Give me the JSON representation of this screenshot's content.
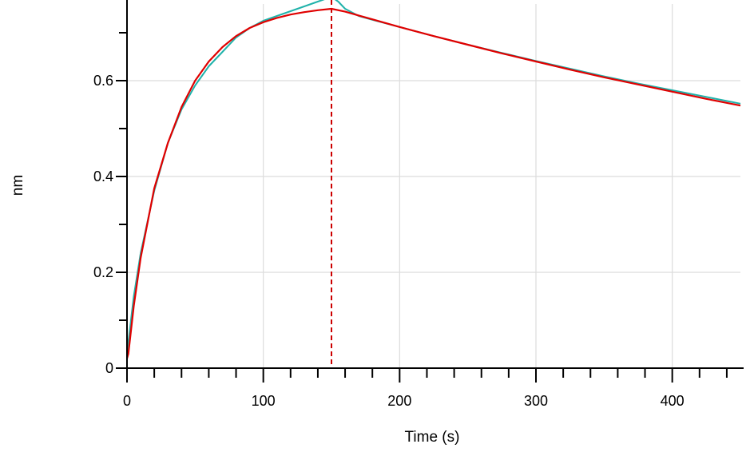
{
  "chart_data": {
    "type": "line",
    "title": "",
    "xlabel": "Time (s)",
    "ylabel": "nm",
    "xlim": [
      0,
      450
    ],
    "ylim": [
      0,
      0.76
    ],
    "x_ticks": [
      0,
      100,
      200,
      300,
      400
    ],
    "x_tick_labels": [
      "0",
      "100",
      "200",
      "300",
      "400"
    ],
    "y_ticks": [
      0,
      0.2,
      0.4,
      0.6
    ],
    "y_tick_labels": [
      "0",
      "0.2",
      "0.4",
      "0.6"
    ],
    "x_minor_step": 20,
    "y_minor_step": 0.1,
    "grid": true,
    "legend": "none",
    "vertical_markers": [
      {
        "x": 0,
        "color": "#000000",
        "dash": false
      },
      {
        "x": 0,
        "color": "#cc0000",
        "dash": true
      },
      {
        "x": 150,
        "color": "#cc0000",
        "dash": true
      }
    ],
    "series": [
      {
        "color": "#20b2aa",
        "x": [
          0,
          5,
          10,
          20,
          30,
          40,
          50,
          60,
          70,
          80,
          90,
          100,
          110,
          120,
          130,
          140,
          150,
          155,
          160,
          170,
          180,
          200,
          225,
          250,
          275,
          300,
          325,
          350,
          375,
          400,
          425,
          450
        ],
        "y": [
          0.03,
          0.15,
          0.24,
          0.37,
          0.47,
          0.54,
          0.59,
          0.63,
          0.66,
          0.69,
          0.71,
          0.725,
          0.735,
          0.745,
          0.755,
          0.765,
          0.775,
          0.765,
          0.75,
          0.735,
          0.727,
          0.712,
          0.693,
          0.675,
          0.658,
          0.641,
          0.625,
          0.609,
          0.594,
          0.58,
          0.566,
          0.552
        ]
      },
      {
        "color": "#e00000",
        "x": [
          0,
          1,
          5,
          10,
          20,
          30,
          40,
          50,
          60,
          70,
          80,
          90,
          100,
          110,
          120,
          130,
          140,
          150,
          160,
          170,
          180,
          200,
          225,
          250,
          275,
          300,
          325,
          350,
          375,
          400,
          425,
          450
        ],
        "y": [
          0.02,
          0.03,
          0.13,
          0.23,
          0.375,
          0.47,
          0.545,
          0.6,
          0.64,
          0.67,
          0.693,
          0.71,
          0.722,
          0.731,
          0.738,
          0.743,
          0.747,
          0.75,
          0.744,
          0.736,
          0.728,
          0.712,
          0.693,
          0.675,
          0.657,
          0.64,
          0.623,
          0.607,
          0.592,
          0.577,
          0.562,
          0.548
        ]
      }
    ]
  }
}
